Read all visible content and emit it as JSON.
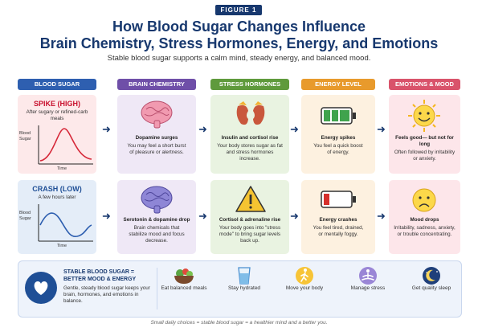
{
  "figure_label": "FIGURE 1",
  "title_line1": "How Blood Sugar Changes Influence",
  "title_line2": "Brain Chemistry, Stress Hormones, Energy, and Emotions",
  "subtitle": "Stable blood sugar supports a calm mind, steady energy, and balanced mood.",
  "columns": [
    "BLOOD SUGAR",
    "BRAIN CHEMISTRY",
    "STRESS HORMONES",
    "ENERGY LEVEL",
    "EMOTIONS & MOOD"
  ],
  "colors": {
    "blue": "#2e5fb0",
    "purple": "#6f4fa8",
    "green": "#5f9a3c",
    "orange": "#e89a2c",
    "pink": "#d9536b",
    "navy": "#17386e"
  },
  "spike": {
    "title": "SPIKE (HIGH)",
    "note": "After sugary or refined-carb meals",
    "ylabel": "Blood Sugar",
    "xlabel": "Time",
    "brain_title": "Dopamine surges",
    "brain_text": "You may feel a short burst of pleasure or alertness.",
    "stress_title": "Insulin and cortisol rise",
    "stress_text": "Your body stores sugar as fat and stress hormones increase.",
    "energy_title": "Energy spikes",
    "energy_text": "You feel a quick boost of energy.",
    "mood_title": "Feels good— but not for long",
    "mood_text": "Often followed by irritability or anxiety."
  },
  "crash": {
    "title": "CRASH (LOW)",
    "note": "A few hours later",
    "ylabel": "Blood Sugar",
    "xlabel": "Time",
    "brain_title": "Serotonin & dopamine drop",
    "brain_text": "Brain chemicals that stabilize mood and focus decrease.",
    "stress_title": "Cortisol & adrenaline rise",
    "stress_text": "Your body goes into \"stress mode\" to bring sugar levels back up.",
    "energy_title": "Energy crashes",
    "energy_text": "You feel tired, drained, or mentally foggy.",
    "mood_title": "Mood drops",
    "mood_text": "Irritability, sadness, anxiety, or trouble concentrating."
  },
  "stable": {
    "title": "STABLE BLOOD SUGAR = BETTER MOOD & ENERGY",
    "text": "Gentle, steady blood sugar keeps your brain, hormones, and emotions in balance.",
    "habits": [
      {
        "label": "Eat balanced meals",
        "icon": "salad-bowl-icon"
      },
      {
        "label": "Stay hydrated",
        "icon": "water-glass-icon"
      },
      {
        "label": "Move your body",
        "icon": "walking-person-icon"
      },
      {
        "label": "Manage stress",
        "icon": "meditation-icon"
      },
      {
        "label": "Get quality sleep",
        "icon": "moon-icon"
      }
    ]
  },
  "footer": "Small daily choices = stable blood sugar = a healthier mind and a better you."
}
